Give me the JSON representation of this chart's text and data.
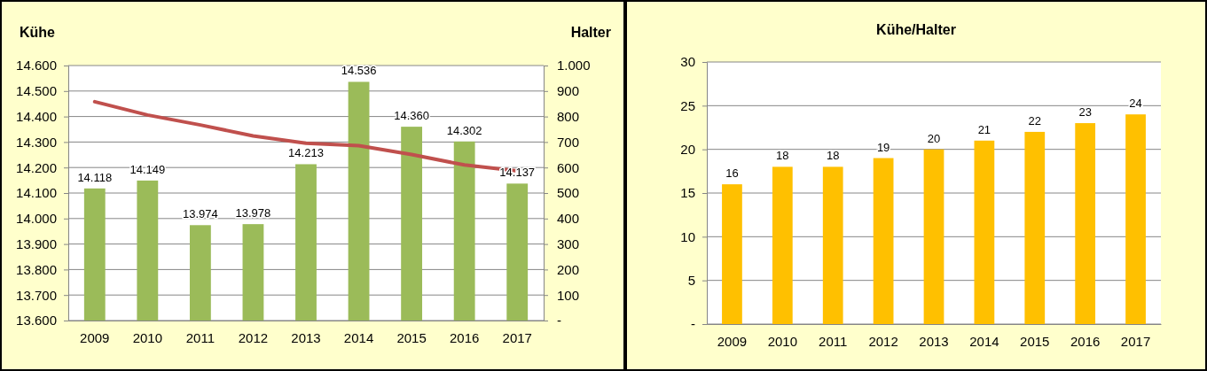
{
  "chart_data": [
    {
      "type": "bar",
      "ylabel": "Kühe",
      "y2label": "Halter",
      "categories": [
        "2009",
        "2010",
        "2011",
        "2012",
        "2013",
        "2014",
        "2015",
        "2016",
        "2017"
      ],
      "series": [
        {
          "type": "bar",
          "color": "#9bbb59",
          "values": [
            14118,
            14149,
            13974,
            13978,
            14213,
            14536,
            14360,
            14302,
            14137
          ],
          "value_labels": [
            "14.118",
            "14.149",
            "13.974",
            "13.978",
            "14.213",
            "14.536",
            "14.360",
            "14.302",
            "14.137"
          ]
        },
        {
          "type": "line",
          "axis": "y2",
          "color": "#c0504d",
          "values": [
            858,
            806,
            767,
            724,
            695,
            686,
            651,
            610,
            587
          ]
        }
      ],
      "ylim": [
        13600,
        14600
      ],
      "yticks": [
        {
          "value": 13600,
          "label": "13.600"
        },
        {
          "value": 13700,
          "label": "13.700"
        },
        {
          "value": 13800,
          "label": "13.800"
        },
        {
          "value": 13900,
          "label": "13.900"
        },
        {
          "value": 14000,
          "label": "14.000"
        },
        {
          "value": 14100,
          "label": "14.100"
        },
        {
          "value": 14200,
          "label": "14.200"
        },
        {
          "value": 14300,
          "label": "14.300"
        },
        {
          "value": 14400,
          "label": "14.400"
        },
        {
          "value": 14500,
          "label": "14.500"
        },
        {
          "value": 14600,
          "label": "14.600"
        }
      ],
      "y2lim": [
        0,
        1000
      ],
      "y2ticks": [
        {
          "value": 0,
          "label": "-"
        },
        100,
        200,
        300,
        400,
        500,
        600,
        700,
        800,
        900,
        {
          "value": 1000,
          "label": "1.000"
        }
      ],
      "grid": "y",
      "marker": "none",
      "line_style": "solid"
    },
    {
      "type": "bar",
      "title": "Kühe/Halter",
      "categories": [
        "2009",
        "2010",
        "2011",
        "2012",
        "2013",
        "2014",
        "2015",
        "2016",
        "2017"
      ],
      "values": [
        16,
        18,
        18,
        19,
        20,
        21,
        22,
        23,
        24
      ],
      "color": "#ffc000",
      "ylim": [
        0,
        30
      ],
      "yticks": [
        {
          "value": 0,
          "label": "-"
        },
        5,
        10,
        15,
        20,
        25,
        30
      ],
      "grid": "y",
      "data_labels": true
    }
  ]
}
